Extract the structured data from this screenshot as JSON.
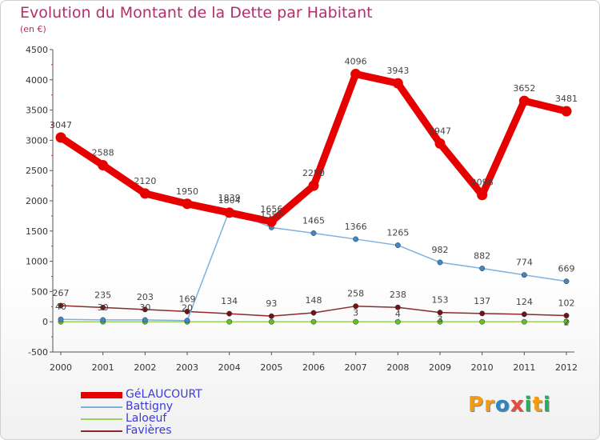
{
  "header": {
    "title": "Evolution du Montant de la Dette par Habitant",
    "subtitle": "(en €)"
  },
  "logo": {
    "text": "Proxiti",
    "letters": [
      {
        "ch": "P",
        "color": "#f39c12"
      },
      {
        "ch": "r",
        "color": "#f39c12"
      },
      {
        "ch": "o",
        "color": "#2e86c1"
      },
      {
        "ch": "x",
        "color": "#e74c3c"
      },
      {
        "ch": "i",
        "color": "#27ae60"
      },
      {
        "ch": "t",
        "color": "#f39c12"
      },
      {
        "ch": "i",
        "color": "#27ae60"
      }
    ]
  },
  "chart_data": {
    "type": "line",
    "title": "Evolution du Montant de la Dette par Habitant",
    "subtitle": "(en €)",
    "x": [
      "2000",
      "2001",
      "2002",
      "2003",
      "2004",
      "2005",
      "2006",
      "2007",
      "2008",
      "2009",
      "2010",
      "2011",
      "2012"
    ],
    "ylim": [
      -500,
      4500
    ],
    "yticks": [
      -500,
      0,
      500,
      1000,
      1500,
      2000,
      2500,
      3000,
      3500,
      4000,
      4500
    ],
    "grid": false,
    "legend_position": "bottom-left",
    "series": [
      {
        "name": "GéLAUCOURT",
        "color": "#e60000",
        "marker": "#e60000",
        "width": 9,
        "values": [
          3047,
          2588,
          2120,
          1950,
          1804,
          1656,
          2250,
          4096,
          3943,
          2947,
          2096,
          3652,
          3481
        ],
        "labels": [
          "3047",
          "2588",
          "2120",
          "1950",
          "1804",
          "1656",
          "2250",
          "4096",
          "3943",
          "2947",
          "2096",
          "3652",
          "3481"
        ]
      },
      {
        "name": "Battigny",
        "color": "#80b0dc",
        "marker": "#3f86c7",
        "width": 1.5,
        "values": [
          40,
          30,
          30,
          20,
          1839,
          1559,
          1465,
          1366,
          1265,
          982,
          882,
          774,
          669
        ],
        "labels": [
          "40",
          "30",
          "30",
          "20",
          "1839",
          "1559",
          "1465",
          "1366",
          "1265",
          "982",
          "882",
          "774",
          "669"
        ]
      },
      {
        "name": "Laloeuf",
        "color": "#9ad35a",
        "marker": "#66bb33",
        "width": 1.5,
        "values": [
          0,
          0,
          0,
          0,
          0,
          0,
          0,
          0,
          0,
          0,
          0,
          0,
          0
        ],
        "labels": []
      },
      {
        "name": "Favières",
        "color": "#8b2a2a",
        "marker": "#6e1414",
        "width": 1.5,
        "values": [
          267,
          235,
          203,
          169,
          134,
          93,
          148,
          258,
          238,
          153,
          137,
          124,
          102
        ],
        "labels": [
          "267",
          "235",
          "203",
          "169",
          "134",
          "93",
          "148",
          "258",
          "238",
          "153",
          "137",
          "124",
          "102"
        ]
      }
    ],
    "extra_labels": [
      {
        "series": 3,
        "index": 7,
        "text": "3"
      },
      {
        "series": 3,
        "index": 8,
        "text": "4"
      },
      {
        "series": 3,
        "index": 9,
        "text": "3"
      },
      {
        "series": 3,
        "index": 12,
        "text": "2"
      }
    ]
  }
}
